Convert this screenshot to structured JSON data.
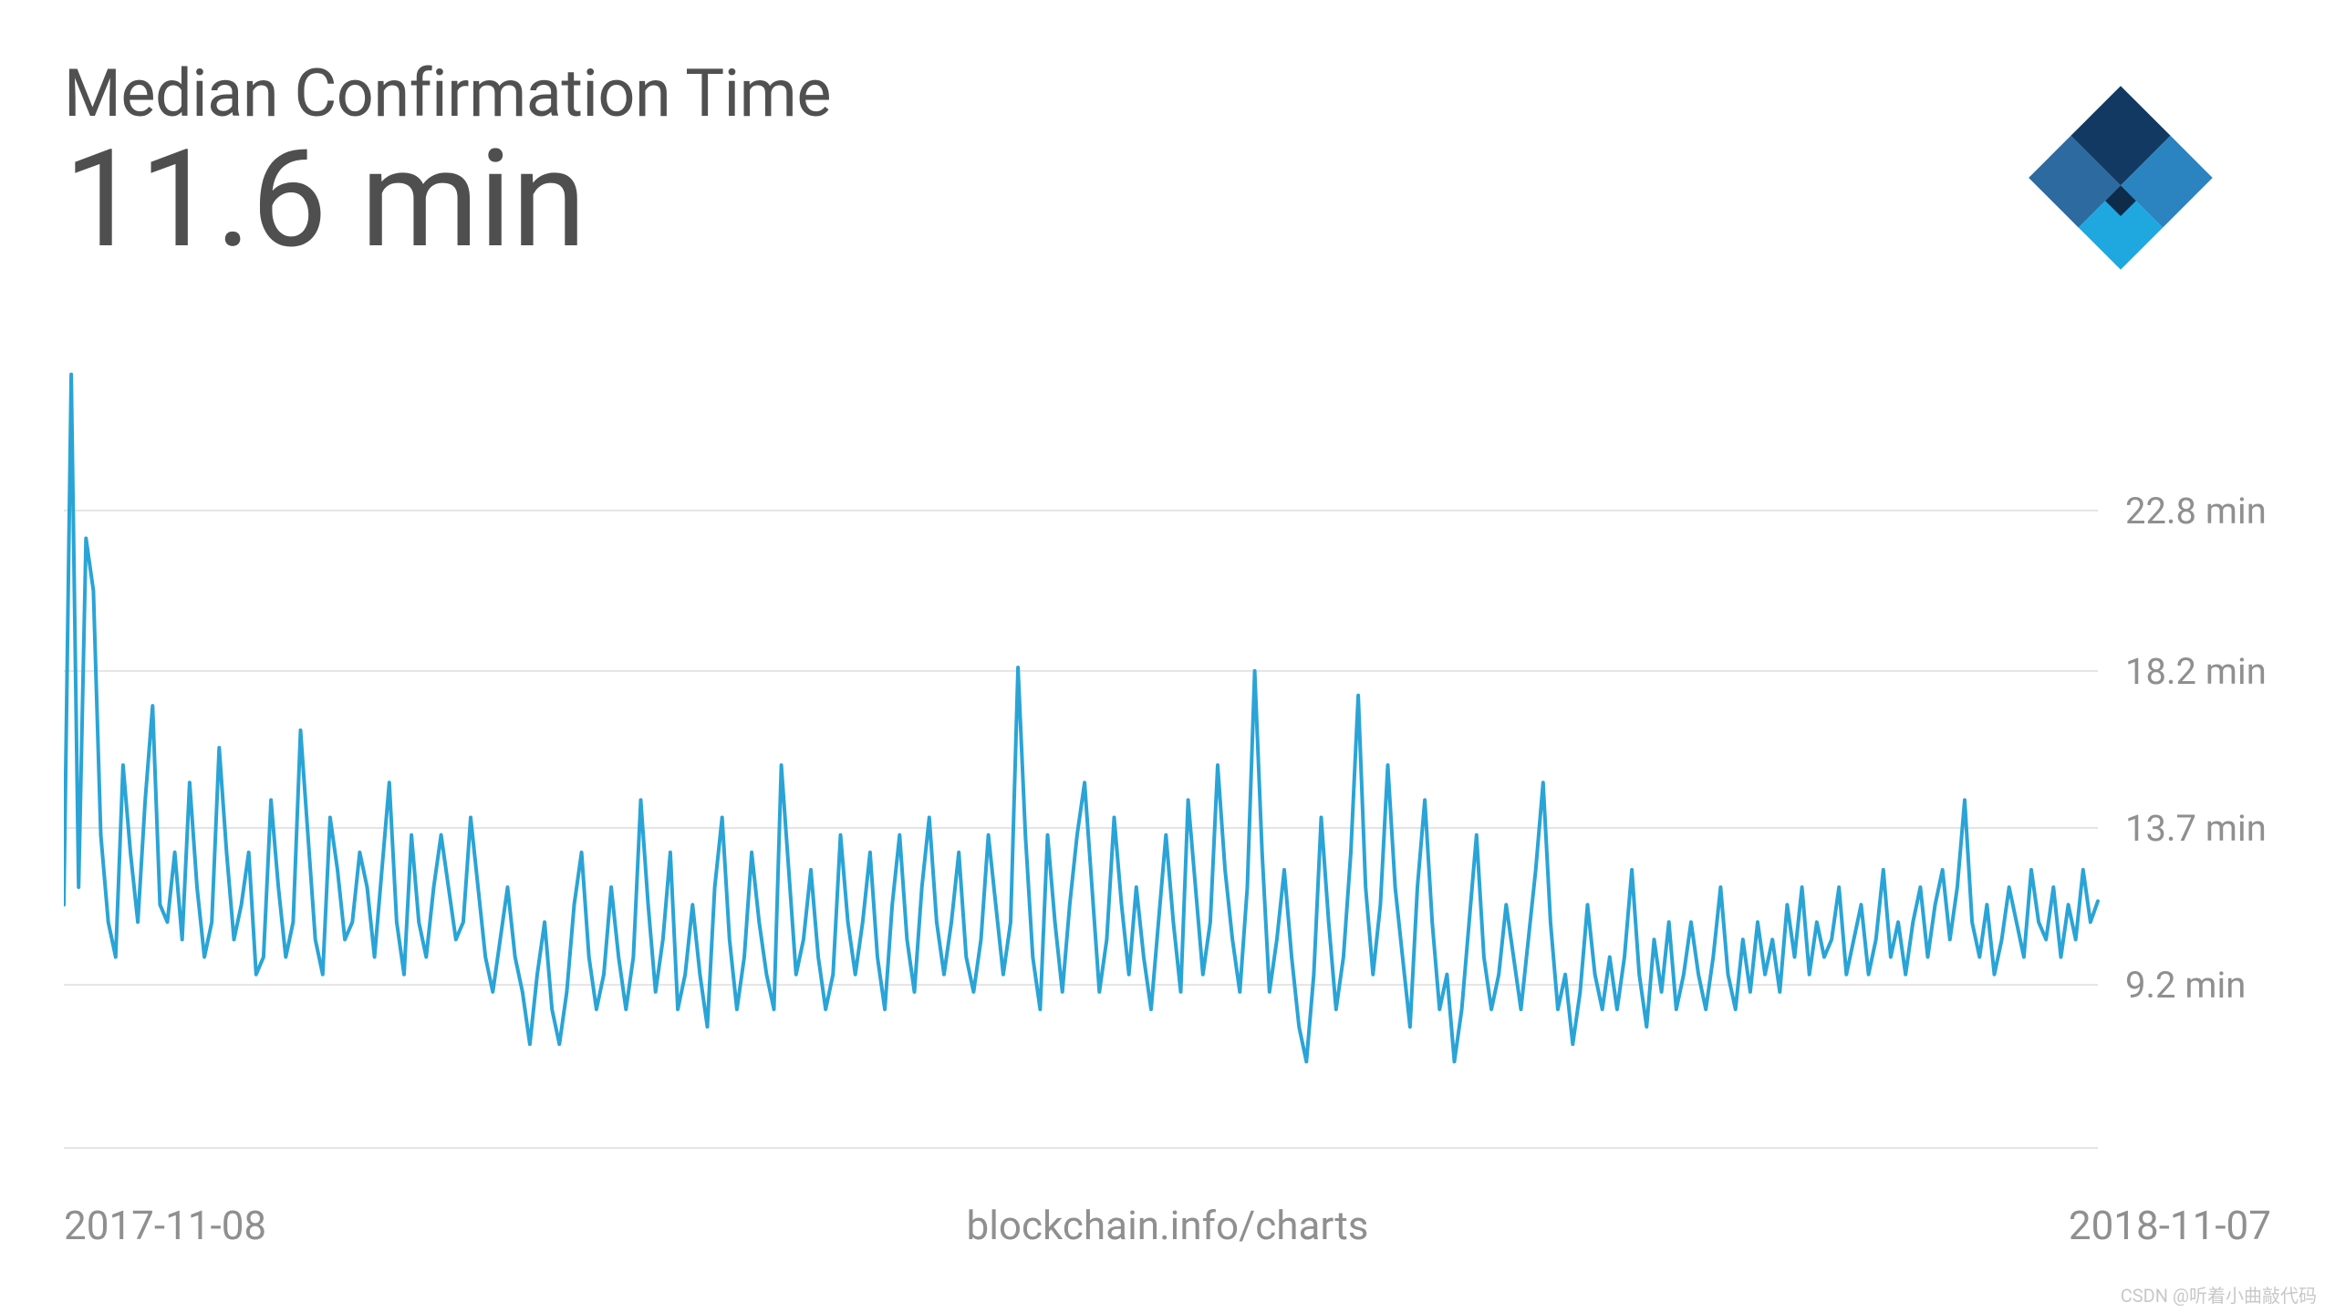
{
  "header": {
    "title": "Median Confirmation Time",
    "value": "11.6 min"
  },
  "logo": {
    "colors": {
      "top": "#123962",
      "right": "#2b83bf",
      "bottom": "#1fa8df",
      "left": "#2c6aa0",
      "shade": "#0f2b4a"
    },
    "size": 210
  },
  "chart": {
    "type": "line",
    "x_start_label": "2017-11-08",
    "x_end_label": "2018-11-07",
    "source_label": "blockchain.info/charts",
    "line_color": "#2aa4d6",
    "line_width": 4,
    "background_color": "#ffffff",
    "grid_color": "#e4e4e4",
    "label_color": "#8f8f8f",
    "title_color": "#505050",
    "title_fontsize_pt": 54,
    "value_fontsize_pt": 110,
    "ylabel_fontsize_pt": 30,
    "xlabel_fontsize_pt": 33,
    "y_axis": {
      "min": 4.5,
      "max": 27.5,
      "ticks": [
        9.2,
        13.7,
        18.2,
        22.8
      ],
      "tick_labels": [
        "9.2 min",
        "13.7 min",
        "18.2 min",
        "22.8 min"
      ]
    },
    "series": [
      11.5,
      26.7,
      12.0,
      22.0,
      20.5,
      13.5,
      11.0,
      10.0,
      15.5,
      13.0,
      11.0,
      14.5,
      17.2,
      11.5,
      11.0,
      13.0,
      10.5,
      15.0,
      12.0,
      10.0,
      11.0,
      16.0,
      13.0,
      10.5,
      11.5,
      13.0,
      9.5,
      10.0,
      14.5,
      12.0,
      10.0,
      11.0,
      16.5,
      13.5,
      10.5,
      9.5,
      14.0,
      12.5,
      10.5,
      11.0,
      13.0,
      12.0,
      10.0,
      12.5,
      15.0,
      11.0,
      9.5,
      13.5,
      11.0,
      10.0,
      12.0,
      13.5,
      12.0,
      10.5,
      11.0,
      14.0,
      12.0,
      10.0,
      9.0,
      10.5,
      12.0,
      10.0,
      9.0,
      7.5,
      9.5,
      11.0,
      8.5,
      7.5,
      9.0,
      11.5,
      13.0,
      10.0,
      8.5,
      9.5,
      12.0,
      10.0,
      8.5,
      10.0,
      14.5,
      11.5,
      9.0,
      10.5,
      13.0,
      8.5,
      9.5,
      11.5,
      9.5,
      8.0,
      12.0,
      14.0,
      10.5,
      8.5,
      10.0,
      13.0,
      11.0,
      9.5,
      8.5,
      15.5,
      12.5,
      9.5,
      10.5,
      12.5,
      10.0,
      8.5,
      9.5,
      13.5,
      11.0,
      9.5,
      11.0,
      13.0,
      10.0,
      8.5,
      11.5,
      13.5,
      10.5,
      9.0,
      12.0,
      14.0,
      11.0,
      9.5,
      11.0,
      13.0,
      10.0,
      9.0,
      10.5,
      13.5,
      11.5,
      9.5,
      11.0,
      18.3,
      13.5,
      10.0,
      8.5,
      13.5,
      11.0,
      9.0,
      11.5,
      13.5,
      15.0,
      12.0,
      9.0,
      10.5,
      14.0,
      11.5,
      9.5,
      12.0,
      10.0,
      8.5,
      11.0,
      13.5,
      11.0,
      9.0,
      14.5,
      12.0,
      9.5,
      11.0,
      15.5,
      12.5,
      10.5,
      9.0,
      12.0,
      18.2,
      13.0,
      9.0,
      10.5,
      12.5,
      10.0,
      8.0,
      7.0,
      9.5,
      14.0,
      11.0,
      8.5,
      10.0,
      13.0,
      17.5,
      12.0,
      9.5,
      11.5,
      15.5,
      12.0,
      10.0,
      8.0,
      12.0,
      14.5,
      11.0,
      8.5,
      9.5,
      7.0,
      8.5,
      11.0,
      13.5,
      10.0,
      8.5,
      9.5,
      11.5,
      10.0,
      8.5,
      10.5,
      12.5,
      15.0,
      11.0,
      8.5,
      9.5,
      7.5,
      9.0,
      11.5,
      9.5,
      8.5,
      10.0,
      8.5,
      10.0,
      12.5,
      9.5,
      8.0,
      10.5,
      9.0,
      11.0,
      8.5,
      9.5,
      11.0,
      9.5,
      8.5,
      10.0,
      12.0,
      9.5,
      8.5,
      10.5,
      9.0,
      11.0,
      9.5,
      10.5,
      9.0,
      11.5,
      10.0,
      12.0,
      9.5,
      11.0,
      10.0,
      10.5,
      12.0,
      9.5,
      10.5,
      11.5,
      9.5,
      10.5,
      12.5,
      10.0,
      11.0,
      9.5,
      11.0,
      12.0,
      10.0,
      11.5,
      12.5,
      10.5,
      12.0,
      14.5,
      11.0,
      10.0,
      11.5,
      9.5,
      10.5,
      12.0,
      11.0,
      10.0,
      12.5,
      11.0,
      10.5,
      12.0,
      10.0,
      11.5,
      10.5,
      12.5,
      11.0,
      11.6
    ]
  },
  "watermark": "CSDN @听着小曲敲代码"
}
